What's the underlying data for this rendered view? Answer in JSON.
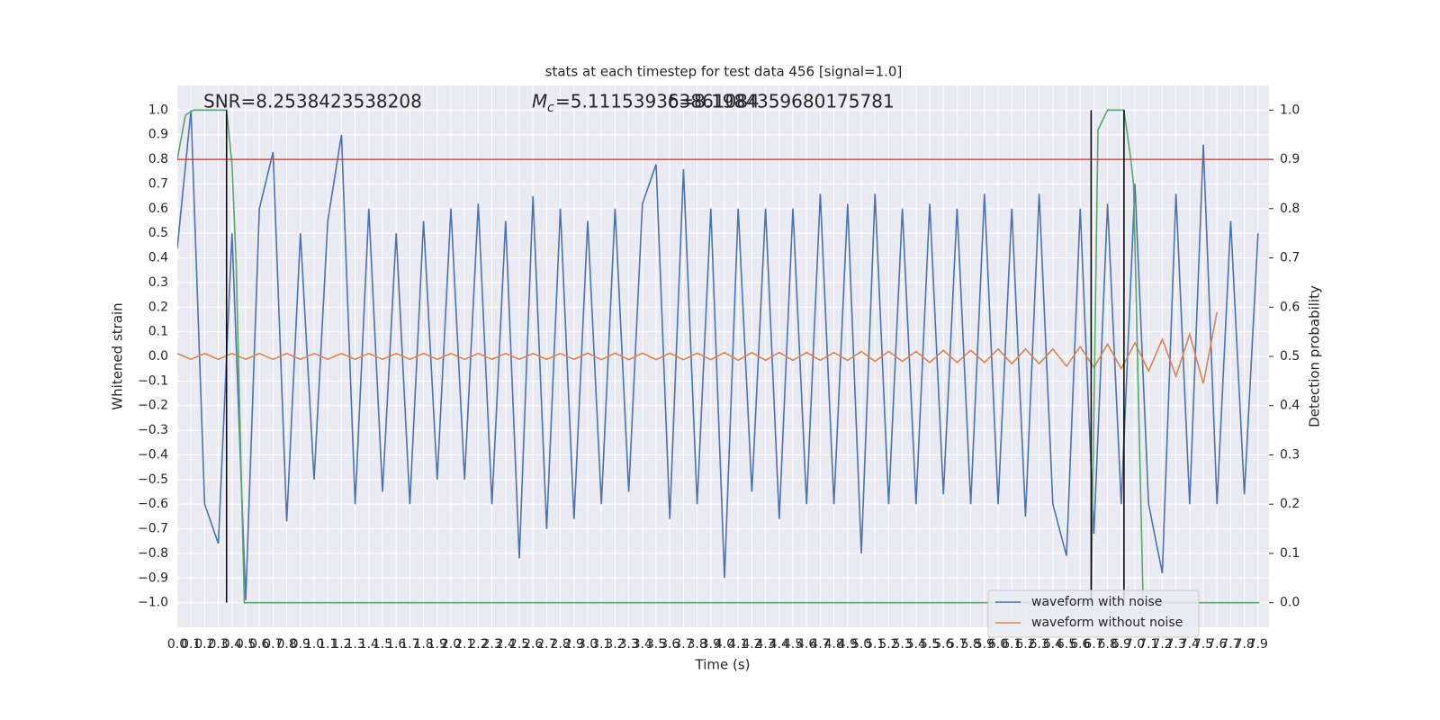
{
  "chart_data": {
    "type": "line",
    "title": "stats at each timestep for test data 456 [signal=1.0]",
    "xlabel": "Time (s)",
    "ylabel": "Whitened strain",
    "y2label": "Detection probability",
    "annotations": [
      "SNR=8.2538423538208",
      "=5.111539363861084",
      "δ=8.1984359680175781"
    ],
    "mc_symbol": "M",
    "mc_subscript": "c",
    "x": [
      0,
      0.1,
      0.2,
      0.3,
      0.4,
      0.5,
      0.6,
      0.7,
      0.8,
      0.9,
      1,
      1.1,
      1.2,
      1.3,
      1.4,
      1.5,
      1.6,
      1.7,
      1.8,
      1.9,
      2,
      2.1,
      2.2,
      2.3,
      2.4,
      2.5,
      2.6,
      2.7,
      2.8,
      2.9,
      3,
      3.1,
      3.2,
      3.3,
      3.4,
      3.5,
      3.6,
      3.7,
      3.8,
      3.9,
      4,
      4.1,
      4.2,
      4.3,
      4.4,
      4.5,
      4.6,
      4.7,
      4.8,
      4.9,
      5,
      5.1,
      5.2,
      5.3,
      5.4,
      5.5,
      5.6,
      5.7,
      5.8,
      5.9,
      6,
      6.1,
      6.2,
      6.3,
      6.4,
      6.5,
      6.6,
      6.7,
      6.8,
      6.9,
      7,
      7.1,
      7.2,
      7.3,
      7.4,
      7.5,
      7.6,
      7.7,
      7.8,
      7.9
    ],
    "series": [
      {
        "name": "waveform with noise",
        "color": "#4c72b0",
        "values": [
          0.44,
          1.0,
          -0.6,
          -0.76,
          0.5,
          -0.99,
          0.6,
          0.83,
          -0.67,
          0.5,
          -0.5,
          0.55,
          0.9,
          -0.6,
          0.6,
          -0.55,
          0.5,
          -0.6,
          0.55,
          -0.5,
          0.6,
          -0.5,
          0.62,
          -0.6,
          0.55,
          -0.82,
          0.65,
          -0.7,
          0.6,
          -0.66,
          0.55,
          -0.6,
          0.6,
          -0.55,
          0.62,
          0.78,
          -0.66,
          0.76,
          -0.6,
          0.6,
          -0.9,
          0.6,
          -0.55,
          0.6,
          -0.66,
          0.6,
          -0.6,
          0.66,
          -0.6,
          0.62,
          -0.8,
          0.66,
          -0.6,
          0.6,
          -0.6,
          0.62,
          -0.56,
          0.6,
          -0.6,
          0.66,
          -0.6,
          0.6,
          -0.65,
          0.66,
          -0.6,
          -0.81,
          0.6,
          -0.72,
          0.62,
          -0.6,
          0.7,
          -0.6,
          -0.88,
          0.66,
          -0.6,
          0.86,
          -0.6,
          0.55,
          -0.56,
          0.5
        ]
      },
      {
        "name": "waveform without noise",
        "color": "#dd8452",
        "values": [
          0.012,
          -0.012,
          0.012,
          -0.012,
          0.012,
          -0.012,
          0.012,
          -0.012,
          0.012,
          -0.012,
          0.012,
          -0.012,
          0.012,
          -0.012,
          0.012,
          -0.012,
          0.012,
          -0.012,
          0.012,
          -0.012,
          0.012,
          -0.012,
          0.012,
          -0.012,
          0.012,
          -0.012,
          0.012,
          -0.012,
          0.012,
          -0.012,
          0.013,
          -0.013,
          0.013,
          -0.013,
          0.013,
          -0.013,
          0.013,
          -0.013,
          0.013,
          -0.013,
          0.016,
          -0.016,
          0.016,
          -0.016,
          0.016,
          -0.016,
          0.016,
          -0.016,
          0.016,
          -0.016,
          0.02,
          -0.02,
          0.02,
          -0.02,
          0.02,
          -0.025,
          0.025,
          -0.025,
          0.025,
          -0.025,
          0.03,
          -0.03,
          0.03,
          -0.03,
          0.03,
          -0.04,
          0.04,
          -0.045,
          0.05,
          -0.05,
          0.055,
          -0.06,
          0.07,
          -0.08,
          0.09,
          -0.11,
          0.18,
          null,
          null,
          null
        ]
      },
      {
        "color": "#55a868",
        "axis": "y2",
        "x": [
          0,
          0.06,
          0.12,
          0.36,
          0.4,
          0.43,
          0.49,
          6.68,
          6.73,
          6.8,
          6.92,
          6.97,
          6.99,
          7.06,
          7.91
        ],
        "values": [
          0.9,
          0.99,
          1.0,
          1.0,
          0.89,
          0.69,
          0,
          0,
          0.96,
          1.0,
          1.0,
          0.9,
          0.85,
          0,
          0
        ]
      }
    ],
    "hline": 0.8,
    "hline_color": "#c44e52",
    "vlines": [
      0.36,
      6.68,
      6.92
    ],
    "vline_span": [
      -1,
      1
    ],
    "vline_color": "#000000",
    "xlim": [
      0,
      7.98
    ],
    "ylim": [
      -1.1,
      1.1
    ],
    "y2lim": [
      -0.05,
      1.05
    ],
    "xticks": [
      {
        "value": 0,
        "label": "0.0"
      },
      0.1,
      0.2,
      0.3,
      0.4,
      0.5,
      0.6,
      0.7,
      0.8,
      0.9,
      {
        "value": 1,
        "label": "1.0"
      },
      1.1,
      1.2,
      1.3,
      1.4,
      1.5,
      1.6,
      1.7,
      1.8,
      1.9,
      {
        "value": 2,
        "label": "2.0"
      },
      2.1,
      2.2,
      2.3,
      2.4,
      2.5,
      2.6,
      2.7,
      2.8,
      2.9,
      {
        "value": 3,
        "label": "3.0"
      },
      3.1,
      3.2,
      3.3,
      3.4,
      3.5,
      3.6,
      3.7,
      3.8,
      3.9,
      {
        "value": 4,
        "label": "4.0"
      },
      4.1,
      4.2,
      4.3,
      4.4,
      4.5,
      4.6,
      4.7,
      4.8,
      4.9,
      {
        "value": 5,
        "label": "5.0"
      },
      5.1,
      5.2,
      5.3,
      5.4,
      5.5,
      5.6,
      5.7,
      5.8,
      5.9,
      {
        "value": 6,
        "label": "6.0"
      },
      6.1,
      6.2,
      6.3,
      6.4,
      6.5,
      6.6,
      6.7,
      6.8,
      6.9,
      {
        "value": 7,
        "label": "7.0"
      },
      7.1,
      7.2,
      7.3,
      7.4,
      7.5,
      7.6,
      7.7,
      7.8,
      7.9
    ],
    "yticks": [
      {
        "value": -1,
        "label": "−1.0"
      },
      {
        "value": -0.9,
        "label": "−0.9"
      },
      {
        "value": -0.8,
        "label": "−0.8"
      },
      {
        "value": -0.7,
        "label": "−0.7"
      },
      {
        "value": -0.6,
        "label": "−0.6"
      },
      {
        "value": -0.5,
        "label": "−0.5"
      },
      {
        "value": -0.4,
        "label": "−0.4"
      },
      {
        "value": -0.3,
        "label": "−0.3"
      },
      {
        "value": -0.2,
        "label": "−0.2"
      },
      {
        "value": -0.1,
        "label": "−0.1"
      },
      {
        "value": 0,
        "label": "0.0"
      },
      0.1,
      0.2,
      0.3,
      0.4,
      0.5,
      0.6,
      0.7,
      0.8,
      0.9,
      {
        "value": 1,
        "label": "1.0"
      }
    ],
    "y2ticks": [
      {
        "value": 0,
        "label": "0.0"
      },
      0.1,
      0.2,
      0.3,
      0.4,
      0.5,
      0.6,
      0.7,
      0.8,
      0.9,
      {
        "value": 1,
        "label": "1.0"
      }
    ],
    "grid": true,
    "legend": "lower right",
    "background": "#eaeaf2"
  }
}
